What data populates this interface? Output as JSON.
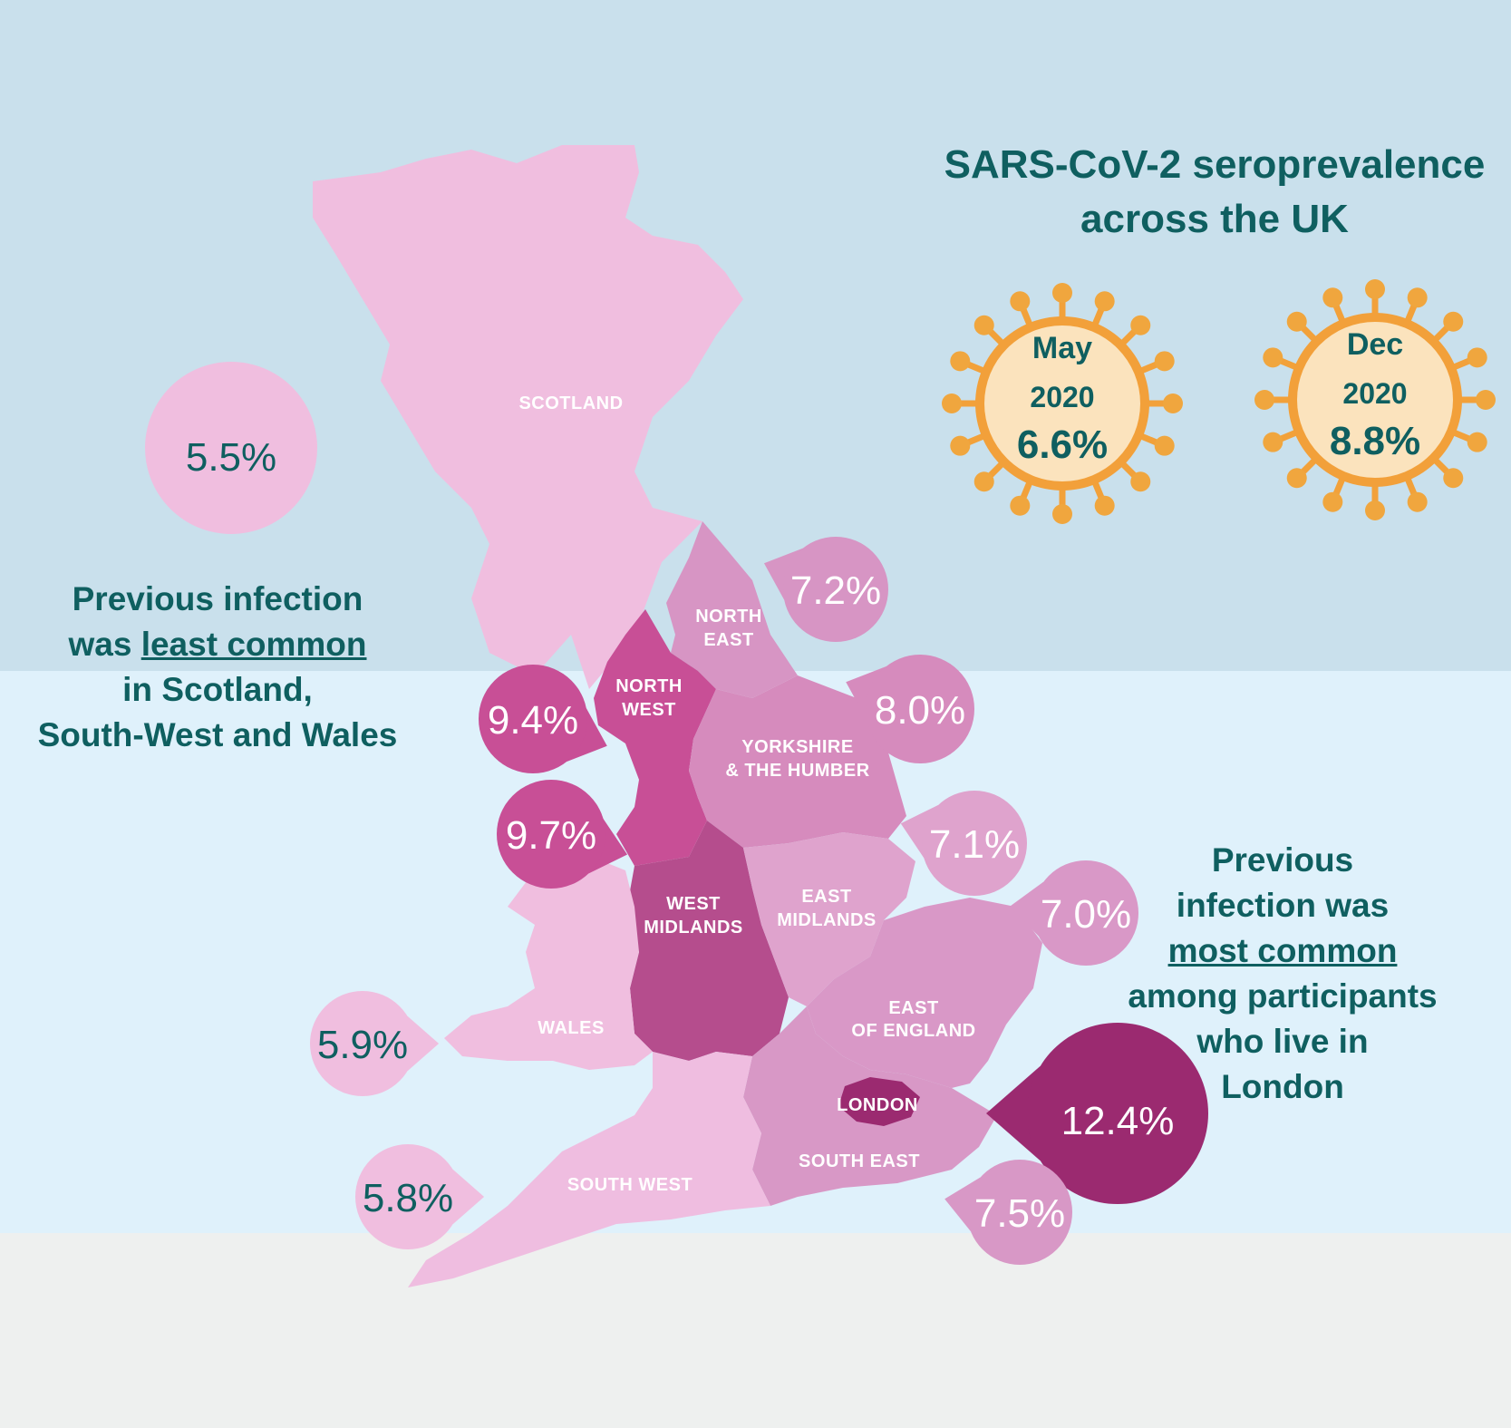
{
  "title_line1": "SARS-CoV-2 seroprevalence",
  "title_line2": "across the UK",
  "national": [
    {
      "month": "May",
      "year": "2020",
      "value": "6.6%"
    },
    {
      "month": "Dec",
      "year": "2020",
      "value": "8.8%"
    }
  ],
  "note_least": {
    "line1": "Previous infection",
    "line2_pre": "was ",
    "line2_u": "least common",
    "line3": "in Scotland,",
    "line4": "South-West and Wales"
  },
  "note_most": {
    "line1": "Previous",
    "line2": "infection was",
    "line3_u": "most common",
    "line4": "among participants",
    "line5": "who live in",
    "line6": "London"
  },
  "regions": {
    "scotland": {
      "label": "SCOTLAND",
      "value": "5.5%"
    },
    "north_east": {
      "label1": "NORTH",
      "label2": "EAST",
      "value": "7.2%"
    },
    "north_west": {
      "label1": "NORTH",
      "label2": "WEST",
      "value": "9.4%"
    },
    "yorkshire": {
      "label1": "YORKSHIRE",
      "label2": "& THE HUMBER",
      "value": "8.0%"
    },
    "west_midlands": {
      "label1": "WEST",
      "label2": "MIDLANDS",
      "value": "9.7%"
    },
    "east_midlands": {
      "label1": "EAST",
      "label2": "MIDLANDS",
      "value": "7.1%"
    },
    "east_of_england": {
      "label1": "EAST",
      "label2": "OF ENGLAND",
      "value": "7.0%"
    },
    "wales": {
      "label": "WALES",
      "value": "5.9%"
    },
    "london": {
      "label": "LONDON",
      "value": "12.4%"
    },
    "south_west": {
      "label": "SOUTH WEST",
      "value": "5.8%"
    },
    "south_east": {
      "label": "SOUTH EAST",
      "value": "7.5%"
    }
  },
  "colors": {
    "scotland": "#f0bedf",
    "wales": "#f0bedf",
    "south_west": "#efbde0",
    "north_east": "#d795c4",
    "yorkshire": "#d68bbd",
    "east_midlands": "#dfa3cd",
    "east_of_england": "#d998c7",
    "south_east": "#d898c6",
    "north_west": "#c84f96",
    "west_midlands": "#b54d8d",
    "london": "#9b2a70",
    "text_dark": "#0f5f60"
  }
}
